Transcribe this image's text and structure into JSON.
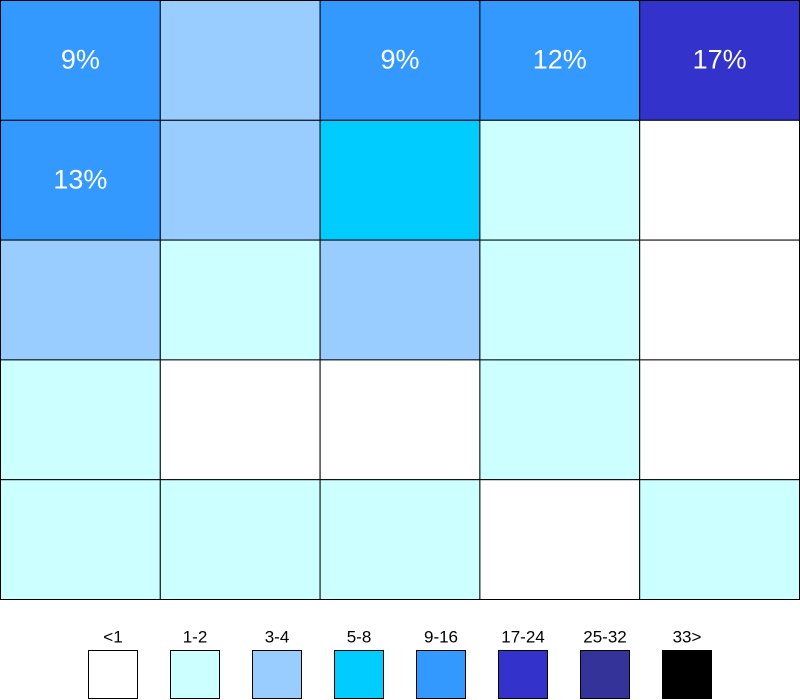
{
  "grid": {
    "rows": [
      [
        {
          "label": "9%",
          "color": "#3399ff"
        },
        {
          "color": "#99ccff"
        },
        {
          "label": "9%",
          "color": "#3399ff"
        },
        {
          "label": "12%",
          "color": "#3399ff"
        },
        {
          "label": "17%",
          "color": "#3333cc"
        }
      ],
      [
        {
          "label": "13%",
          "color": "#3399ff"
        },
        {
          "color": "#99ccff"
        },
        {
          "color": "#00ccff"
        },
        {
          "color": "#ccffff"
        },
        {
          "color": "#ffffff"
        }
      ],
      [
        {
          "color": "#99ccff"
        },
        {
          "color": "#ccffff"
        },
        {
          "color": "#99ccff"
        },
        {
          "color": "#ccffff"
        },
        {
          "color": "#ffffff"
        }
      ],
      [
        {
          "color": "#ccffff"
        },
        {
          "color": "#ffffff"
        },
        {
          "color": "#ffffff"
        },
        {
          "color": "#ccffff"
        },
        {
          "color": "#ffffff"
        }
      ],
      [
        {
          "color": "#ccffff"
        },
        {
          "color": "#ccffff"
        },
        {
          "color": "#ccffff"
        },
        {
          "color": "#ffffff"
        },
        {
          "color": "#ccffff"
        }
      ]
    ]
  },
  "legend": [
    {
      "label": "<1",
      "color": "#ffffff"
    },
    {
      "label": "1-2",
      "color": "#ccffff"
    },
    {
      "label": "3-4",
      "color": "#99ccff"
    },
    {
      "label": "5-8",
      "color": "#00ccff"
    },
    {
      "label": "9-16",
      "color": "#3399ff"
    },
    {
      "label": "17-24",
      "color": "#3333cc"
    },
    {
      "label": "25-32",
      "color": "#333399"
    },
    {
      "label": "33>",
      "color": "#000000"
    }
  ]
}
